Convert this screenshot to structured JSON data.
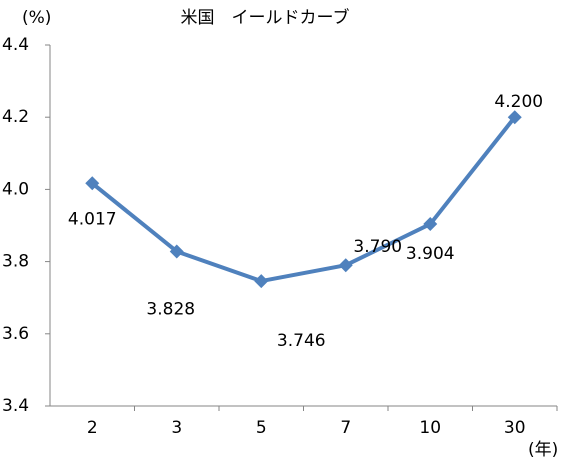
{
  "chart_data": {
    "type": "line",
    "title": "米国　イールドカーブ",
    "y_unit": "(%)",
    "x_unit": "(年)",
    "categories": [
      "2",
      "3",
      "5",
      "7",
      "10",
      "30"
    ],
    "series": [
      {
        "name": "米国",
        "color": "#4f81bd",
        "values": [
          4.017,
          3.828,
          3.746,
          3.79,
          3.904,
          4.2
        ],
        "value_labels": [
          "4.017",
          "3.828",
          "3.746",
          "3.790",
          "3.904",
          "4.200"
        ]
      }
    ],
    "ylim": [
      3.4,
      4.4
    ],
    "yticks": [
      3.4,
      3.6,
      3.8,
      {
        "value": 4,
        "label": "4.0"
      },
      4.2,
      4.4
    ],
    "legend": false,
    "grid": false
  }
}
